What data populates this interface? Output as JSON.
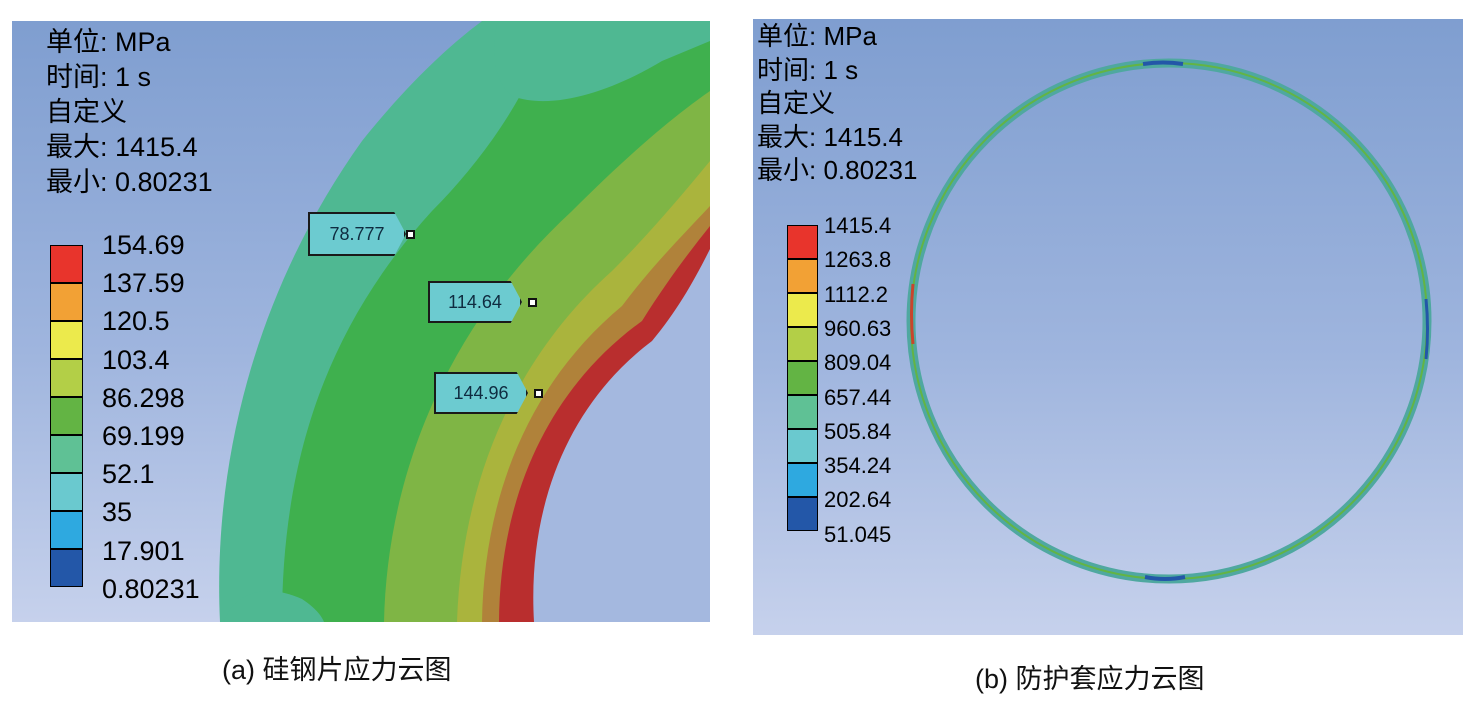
{
  "panel_a": {
    "info": {
      "unit": "单位: MPa",
      "time": "时间: 1 s",
      "type": "自定义",
      "max": "最大: 1415.4",
      "min": "最小: 0.80231"
    },
    "legend": [
      {
        "label": "154.69",
        "color": "#e8342c"
      },
      {
        "label": "137.59",
        "color": "#f2a135"
      },
      {
        "label": "120.5",
        "color": "#ecea4c"
      },
      {
        "label": "103.4",
        "color": "#b3cf47"
      },
      {
        "label": "86.298",
        "color": "#63b444"
      },
      {
        "label": "69.199",
        "color": "#5fc195"
      },
      {
        "label": "52.1",
        "color": "#6ac9cf"
      },
      {
        "label": "35",
        "color": "#2ea9e0"
      },
      {
        "label": "17.901",
        "color": "#2357a8"
      },
      {
        "label": "0.80231",
        "color": null
      }
    ],
    "probes": [
      "78.777",
      "114.64",
      "144.96"
    ],
    "caption": "(a) 硅钢片应力云图"
  },
  "panel_b": {
    "info": {
      "unit": "单位: MPa",
      "time": "时间: 1 s",
      "type": "自定义",
      "max": "最大: 1415.4",
      "min": "最小: 0.80231"
    },
    "legend": [
      {
        "label": "1415.4",
        "color": "#e8342c"
      },
      {
        "label": "1263.8",
        "color": "#f2a135"
      },
      {
        "label": "1112.2",
        "color": "#ecea4c"
      },
      {
        "label": "960.63",
        "color": "#b3cf47"
      },
      {
        "label": "809.04",
        "color": "#63b444"
      },
      {
        "label": "657.44",
        "color": "#5fc195"
      },
      {
        "label": "505.84",
        "color": "#6ac9cf"
      },
      {
        "label": "354.24",
        "color": "#2ea9e0"
      },
      {
        "label": "202.64",
        "color": "#2357a8"
      },
      {
        "label": "51.045",
        "color": null
      }
    ],
    "caption": "(b) 防护套应力云图"
  }
}
